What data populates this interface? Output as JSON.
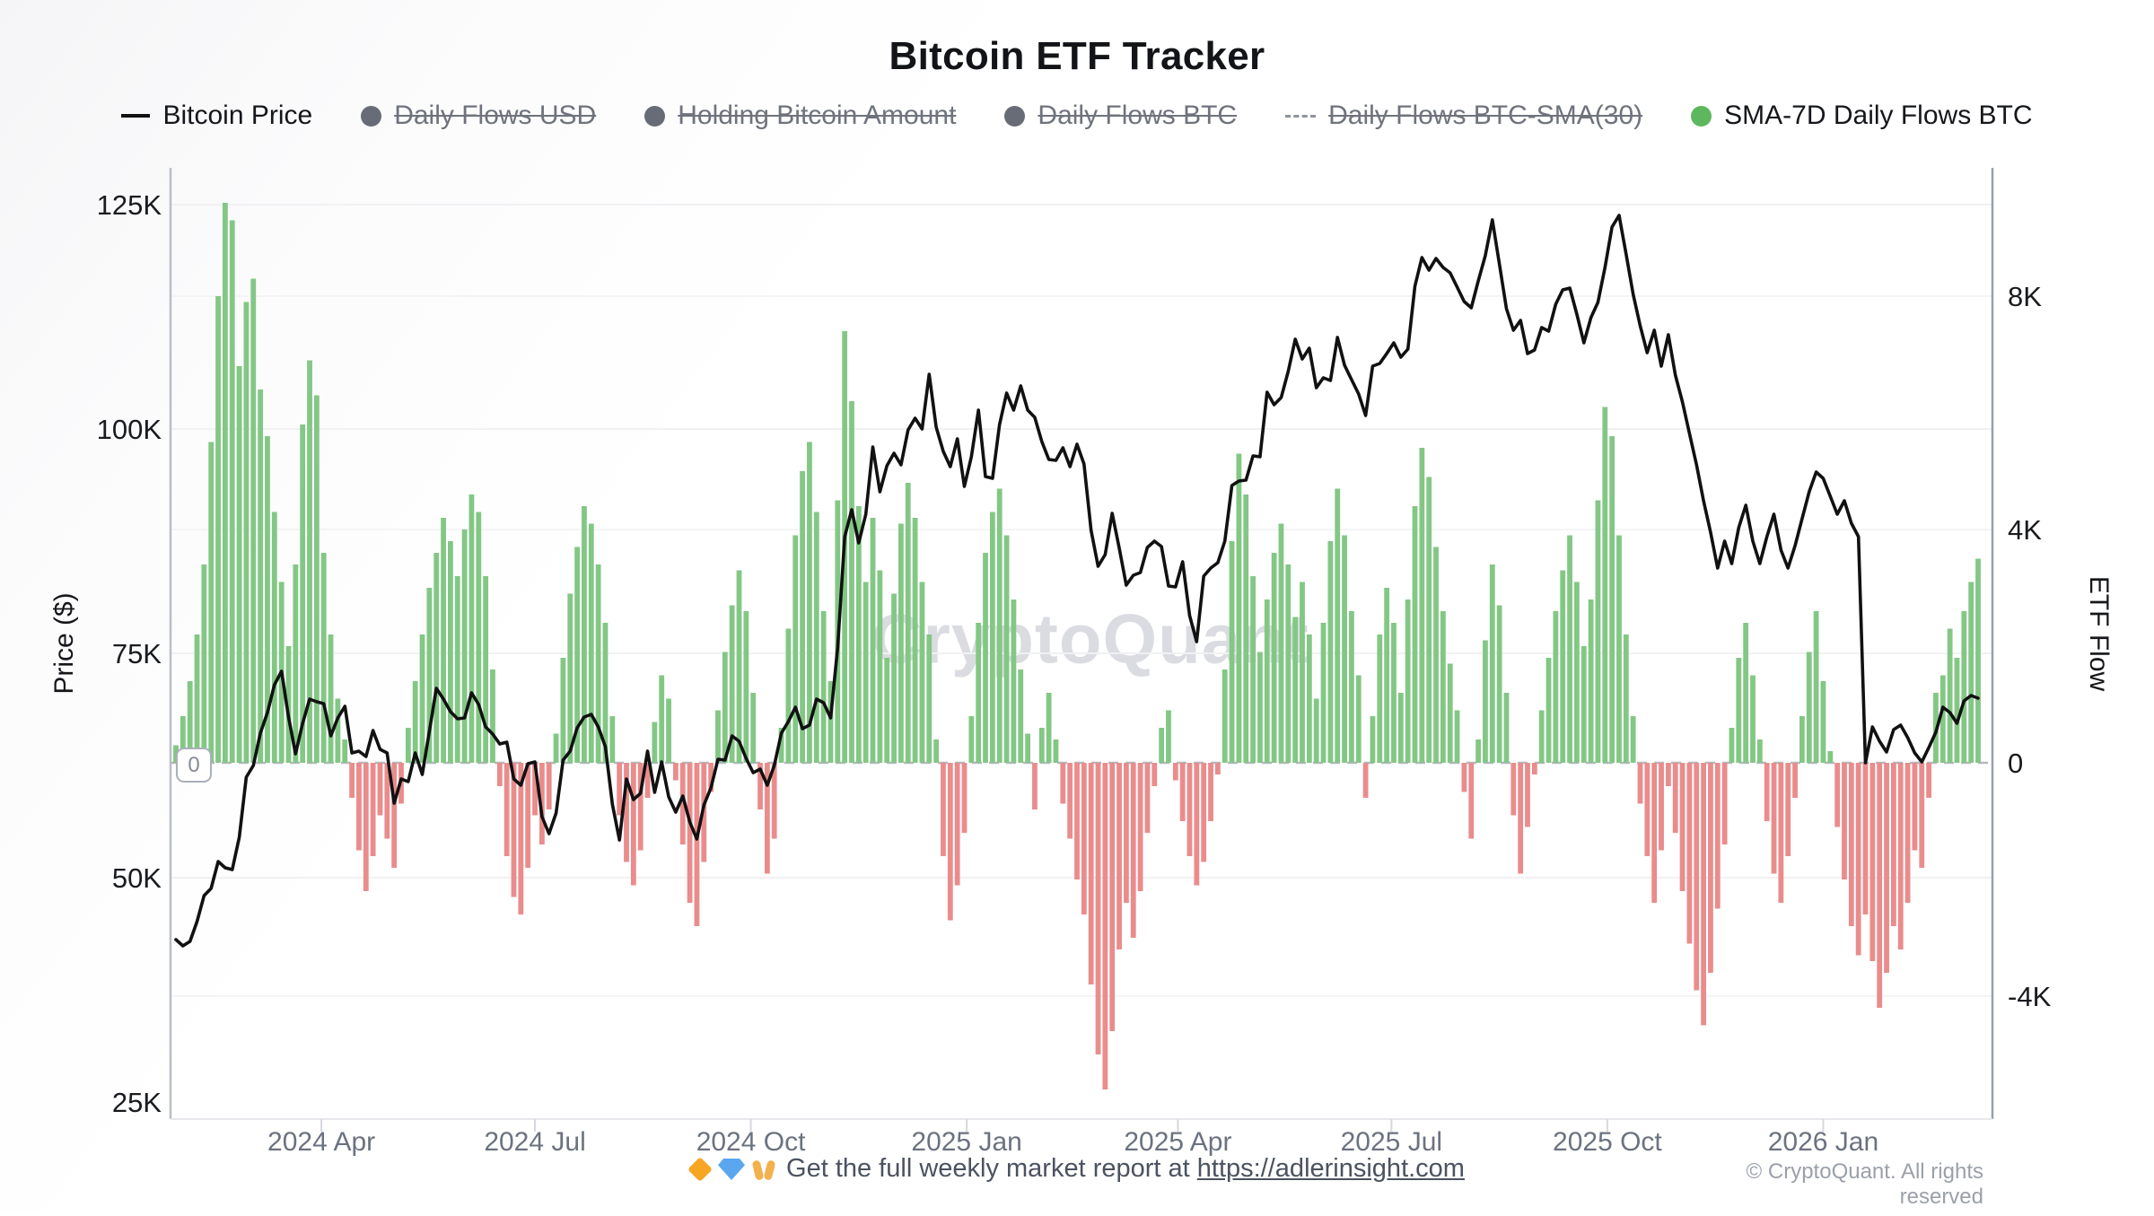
{
  "title": "Bitcoin ETF Tracker",
  "legend": [
    {
      "label": "Bitcoin Price",
      "marker": "line",
      "color": "#111111",
      "active": true
    },
    {
      "label": "Daily Flows USD",
      "marker": "dot",
      "color": "#686c76",
      "active": false
    },
    {
      "label": "Holding Bitcoin Amount",
      "marker": "dot",
      "color": "#686c76",
      "active": false
    },
    {
      "label": "Daily Flows BTC",
      "marker": "dot",
      "color": "#686c76",
      "active": false
    },
    {
      "label": "Daily Flows BTC-SMA(30)",
      "marker": "dashed-line",
      "color": "#8d929c",
      "active": false
    },
    {
      "label": "SMA-7D Daily Flows BTC",
      "marker": "dot",
      "color": "#5db75d",
      "active": true
    }
  ],
  "watermark": "CryptoQuant",
  "zero_badge": "0",
  "axes": {
    "left": {
      "title": "Price ($)",
      "ticks": [
        "125K",
        "100K",
        "75K",
        "50K",
        "25K"
      ],
      "tick_values_k_usd": [
        125,
        100,
        75,
        50,
        25
      ]
    },
    "right": {
      "title": "ETF Flow",
      "ticks": [
        "8K",
        "4K",
        "0",
        "-4K"
      ],
      "tick_values_k_btc": [
        8,
        4,
        0,
        -4
      ]
    },
    "x": {
      "ticks": [
        "2024 Apr",
        "2024 Jul",
        "2024 Oct",
        "2025 Jan",
        "2025 Apr",
        "2025 Jul",
        "2025 Oct",
        "2026 Jan"
      ]
    }
  },
  "footer": {
    "promo_emoji": "🔶💎🙌",
    "promo_text": "Get the full weekly market report at ",
    "promo_link": "https://adlerinsight.com",
    "copyright": "© CryptoQuant. All rights reserved"
  },
  "chart_data": {
    "type": "mixed",
    "title": "Bitcoin ETF Tracker",
    "x_start": "2024-01-30",
    "x_end": "2026-03-08",
    "step_days": 3,
    "x_tick_positions_days": [
      62,
      153,
      245,
      337,
      427,
      518,
      610,
      702
    ],
    "x_tick_labels": [
      "2024 Apr",
      "2024 Jul",
      "2024 Oct",
      "2025 Jan",
      "2025 Apr",
      "2025 Jul",
      "2025 Oct",
      "2026 Jan"
    ],
    "left_axis": {
      "label": "Price ($)",
      "range_k_usd": [
        23,
        129
      ],
      "gridlines": true
    },
    "right_axis": {
      "label": "ETF Flow",
      "range_k_btc": [
        -6.1,
        10.2
      ],
      "zero_line": "dashed"
    },
    "legend_position": "top",
    "series": [
      {
        "name": "Bitcoin Price",
        "type": "line",
        "axis": "left",
        "unit": "thousand USD",
        "color": "#111111",
        "values": [
          43.1,
          42.4,
          42.9,
          45.1,
          48.0,
          48.8,
          51.8,
          51.1,
          50.9,
          54.5,
          61.2,
          62.5,
          66.1,
          68.4,
          71.5,
          73.0,
          67.9,
          63.8,
          67.2,
          69.9,
          69.6,
          69.4,
          65.8,
          67.8,
          69.1,
          63.9,
          64.1,
          63.5,
          66.4,
          64.3,
          63.9,
          58.3,
          61.0,
          60.7,
          63.9,
          61.5,
          66.3,
          71.1,
          69.9,
          68.5,
          67.7,
          67.8,
          70.6,
          69.3,
          66.8,
          66.0,
          64.9,
          65.1,
          61.0,
          60.3,
          62.7,
          62.9,
          56.8,
          54.9,
          57.2,
          63.1,
          64.1,
          66.7,
          67.9,
          68.2,
          66.8,
          64.6,
          58.2,
          54.2,
          61.0,
          58.7,
          59.4,
          64.1,
          59.5,
          62.9,
          59.0,
          57.3,
          59.1,
          56.2,
          54.3,
          58.1,
          60.0,
          63.2,
          63.1,
          65.8,
          65.2,
          63.3,
          61.7,
          62.1,
          60.3,
          62.5,
          66.1,
          67.4,
          69.0,
          66.6,
          67.0,
          69.9,
          69.5,
          67.8,
          75.6,
          88.0,
          91.0,
          87.3,
          90.5,
          98.0,
          93.0,
          95.9,
          97.3,
          96.0,
          99.9,
          101.2,
          100.0,
          106.1,
          100.2,
          97.5,
          95.8,
          98.9,
          93.6,
          96.9,
          102.1,
          94.7,
          94.5,
          100.5,
          104.0,
          102.1,
          104.8,
          102.1,
          101.3,
          98.6,
          96.6,
          96.5,
          97.9,
          95.8,
          98.3,
          96.1,
          88.7,
          84.7,
          86.0,
          90.6,
          86.7,
          82.6,
          83.7,
          84.0,
          86.8,
          87.5,
          86.9,
          82.5,
          82.4,
          85.2,
          79.2,
          76.3,
          83.6,
          84.5,
          85.1,
          87.5,
          93.7,
          94.2,
          94.3,
          97.0,
          96.9,
          104.1,
          102.7,
          103.5,
          106.4,
          110.0,
          107.8,
          109.0,
          104.6,
          105.7,
          105.4,
          110.2,
          107.1,
          105.5,
          103.9,
          101.5,
          107.0,
          107.3,
          108.4,
          109.6,
          108.0,
          108.9,
          115.9,
          119.1,
          117.7,
          119.0,
          118.0,
          117.4,
          115.8,
          114.2,
          113.5,
          116.5,
          119.3,
          123.3,
          118.4,
          113.4,
          111.0,
          112.1,
          108.4,
          108.8,
          111.3,
          110.9,
          113.9,
          115.5,
          115.7,
          112.8,
          109.6,
          112.4,
          114.1,
          118.0,
          122.5,
          123.8,
          119.5,
          115.0,
          111.5,
          108.5,
          111.0,
          107.0,
          110.5,
          106.0,
          103.0,
          99.5,
          96.0,
          92.0,
          88.5,
          84.5,
          87.5,
          85.0,
          89.0,
          91.5,
          87.5,
          85.0,
          88.0,
          90.5,
          86.5,
          84.5,
          87.0,
          90.0,
          93.0,
          95.2,
          94.5,
          92.5,
          90.5,
          92.0,
          89.5,
          88.0,
          62.8,
          66.8,
          65.2,
          64.0,
          66.5,
          67.0,
          65.6,
          63.9,
          62.9,
          64.5,
          66.2,
          69.0,
          68.4,
          67.2,
          69.7,
          70.3,
          70.0
        ]
      },
      {
        "name": "SMA-7D Daily Flows BTC",
        "type": "bar",
        "axis": "right",
        "unit": "thousand BTC",
        "color_positive": "#83c785",
        "color_negative": "#ea8c8c",
        "values": [
          0.3,
          0.8,
          1.4,
          2.2,
          3.4,
          5.5,
          8.0,
          9.6,
          9.3,
          6.8,
          7.9,
          8.3,
          6.4,
          5.6,
          4.3,
          3.1,
          2.0,
          3.4,
          5.8,
          6.9,
          6.3,
          3.6,
          2.2,
          1.1,
          0.4,
          -0.6,
          -1.5,
          -2.2,
          -1.6,
          -0.9,
          -1.3,
          -1.8,
          -0.7,
          0.6,
          1.4,
          2.2,
          3.0,
          3.6,
          4.2,
          3.8,
          3.2,
          4.0,
          4.6,
          4.3,
          3.2,
          1.6,
          -0.4,
          -1.6,
          -2.3,
          -2.6,
          -1.8,
          -0.9,
          -1.4,
          -0.8,
          0.5,
          1.8,
          2.9,
          3.7,
          4.4,
          4.1,
          3.4,
          2.4,
          0.8,
          -0.9,
          -1.7,
          -2.1,
          -1.5,
          -0.6,
          0.7,
          1.5,
          1.1,
          -0.3,
          -1.4,
          -2.4,
          -2.8,
          -1.7,
          -0.5,
          0.9,
          1.9,
          2.7,
          3.3,
          2.6,
          1.2,
          -0.8,
          -1.9,
          -1.3,
          0.6,
          2.3,
          3.9,
          5.0,
          5.5,
          4.3,
          2.6,
          1.4,
          4.5,
          7.4,
          6.2,
          4.4,
          3.1,
          4.2,
          3.3,
          1.8,
          2.9,
          4.1,
          4.8,
          4.2,
          3.1,
          2.2,
          0.4,
          -1.6,
          -2.7,
          -2.1,
          -1.2,
          0.8,
          2.4,
          3.6,
          4.3,
          4.7,
          3.9,
          2.8,
          1.6,
          0.5,
          -0.8,
          0.6,
          1.2,
          0.4,
          -0.7,
          -1.3,
          -2.0,
          -2.6,
          -3.8,
          -5.0,
          -5.6,
          -4.6,
          -3.2,
          -2.4,
          -3.0,
          -2.2,
          -1.2,
          -0.4,
          0.6,
          0.9,
          -0.3,
          -1.0,
          -1.6,
          -2.1,
          -1.7,
          -1.0,
          -0.2,
          1.6,
          3.8,
          5.3,
          4.6,
          3.2,
          1.9,
          2.8,
          3.6,
          4.1,
          3.4,
          2.5,
          3.1,
          2.2,
          1.1,
          2.4,
          3.8,
          4.7,
          3.9,
          2.6,
          1.5,
          -0.6,
          0.8,
          2.2,
          3.0,
          2.4,
          1.2,
          2.8,
          4.4,
          5.4,
          4.9,
          3.7,
          2.6,
          1.7,
          0.9,
          -0.5,
          -1.3,
          0.4,
          2.1,
          3.4,
          2.7,
          1.2,
          -0.9,
          -1.9,
          -1.1,
          -0.2,
          0.9,
          1.8,
          2.6,
          3.3,
          3.9,
          3.1,
          2.0,
          2.8,
          4.5,
          6.1,
          5.6,
          3.9,
          2.2,
          0.8,
          -0.7,
          -1.6,
          -2.4,
          -1.5,
          -0.4,
          -1.2,
          -2.2,
          -3.1,
          -3.9,
          -4.5,
          -3.6,
          -2.5,
          -1.4,
          0.6,
          1.8,
          2.4,
          1.5,
          0.4,
          -1.0,
          -1.9,
          -2.4,
          -1.6,
          -0.6,
          0.8,
          1.9,
          2.6,
          1.4,
          0.2,
          -1.1,
          -2.0,
          -2.8,
          -3.3,
          -2.6,
          -3.4,
          -4.2,
          -3.6,
          -2.8,
          -3.2,
          -2.4,
          -1.5,
          -1.8,
          -0.6,
          1.2,
          1.5,
          2.3,
          1.8,
          2.6,
          3.1,
          3.5
        ]
      }
    ]
  }
}
